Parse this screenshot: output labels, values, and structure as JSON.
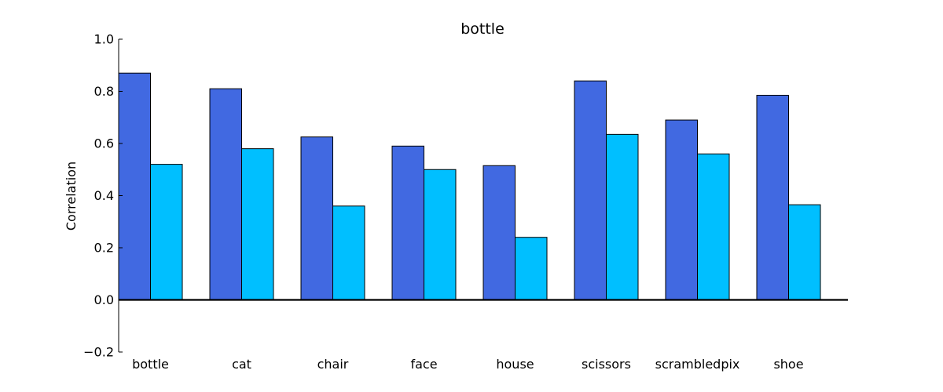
{
  "chart_data": {
    "type": "bar",
    "title": "bottle",
    "xlabel": "",
    "ylabel": "Correlation",
    "ylim": [
      -0.2,
      1.0
    ],
    "yticks": [
      -0.2,
      0.0,
      0.2,
      0.4,
      0.6,
      0.8,
      1.0
    ],
    "ytick_labels": [
      "−0.2",
      "0.0",
      "0.2",
      "0.4",
      "0.6",
      "0.8",
      "1.0"
    ],
    "categories": [
      "bottle",
      "cat",
      "chair",
      "face",
      "house",
      "scissors",
      "scrambledpix",
      "shoe"
    ],
    "grid": false,
    "legend": "none",
    "series": [
      {
        "color": "#4169E1",
        "values": [
          0.87,
          0.81,
          0.625,
          0.59,
          0.515,
          0.84,
          0.69,
          0.785
        ]
      },
      {
        "color": "#00BFFF",
        "values": [
          0.52,
          0.58,
          0.36,
          0.5,
          0.24,
          0.635,
          0.56,
          0.365
        ]
      }
    ]
  }
}
